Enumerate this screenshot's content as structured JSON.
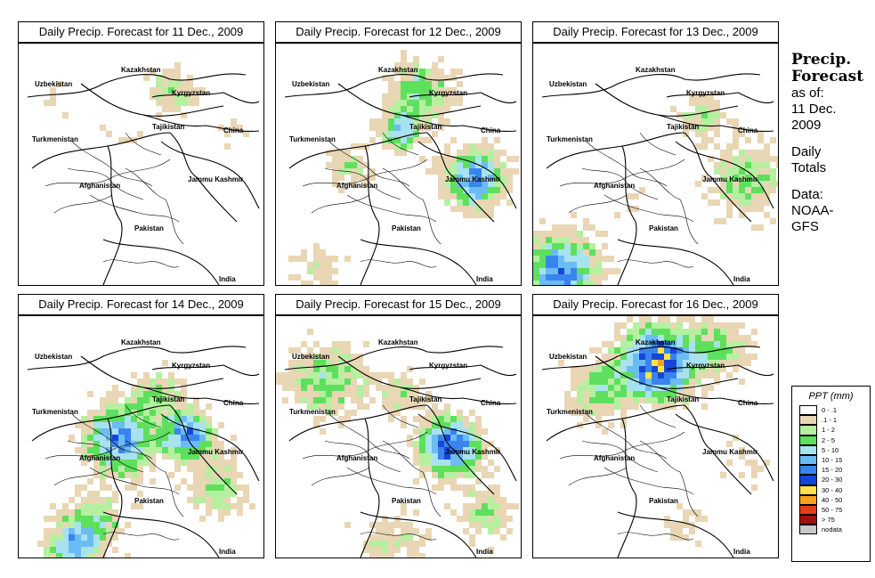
{
  "panels": [
    {
      "title": "Daily Precip. Forecast for  11 Dec., 2009",
      "seed": 11,
      "intensity": 0.35,
      "centers": [
        [
          0.62,
          0.18,
          0.1,
          1.8
        ],
        [
          0.15,
          0.22,
          0.08,
          0.8
        ],
        [
          0.88,
          0.35,
          0.08,
          0.9
        ],
        [
          0.4,
          0.35,
          0.08,
          0.8
        ]
      ]
    },
    {
      "title": "Daily Precip. Forecast for  12 Dec., 2009",
      "seed": 12,
      "intensity": 0.6,
      "centers": [
        [
          0.58,
          0.18,
          0.12,
          2.6
        ],
        [
          0.8,
          0.55,
          0.12,
          4.0
        ],
        [
          0.3,
          0.5,
          0.1,
          1.6
        ],
        [
          0.5,
          0.35,
          0.08,
          3.2
        ],
        [
          0.15,
          0.92,
          0.1,
          1.4
        ]
      ]
    },
    {
      "title": "Daily Precip. Forecast for  13 Dec., 2009",
      "seed": 13,
      "intensity": 0.5,
      "centers": [
        [
          0.1,
          0.93,
          0.15,
          4.2
        ],
        [
          0.85,
          0.55,
          0.15,
          2.2
        ],
        [
          0.68,
          0.28,
          0.1,
          1.6
        ],
        [
          0.4,
          0.65,
          0.08,
          0.9
        ]
      ]
    },
    {
      "title": "Daily Precip. Forecast for  14 Dec., 2009",
      "seed": 14,
      "intensity": 0.7,
      "centers": [
        [
          0.4,
          0.5,
          0.14,
          4.0
        ],
        [
          0.68,
          0.48,
          0.1,
          4.2
        ],
        [
          0.3,
          0.85,
          0.12,
          2.4
        ],
        [
          0.8,
          0.7,
          0.12,
          2.0
        ],
        [
          0.2,
          0.95,
          0.1,
          3.0
        ],
        [
          0.55,
          0.3,
          0.1,
          2.0
        ]
      ]
    },
    {
      "title": "Daily Precip. Forecast for  15 Dec., 2009",
      "seed": 15,
      "intensity": 0.6,
      "centers": [
        [
          0.7,
          0.53,
          0.12,
          4.8
        ],
        [
          0.2,
          0.25,
          0.15,
          2.4
        ],
        [
          0.85,
          0.8,
          0.1,
          2.0
        ],
        [
          0.5,
          0.3,
          0.1,
          1.6
        ],
        [
          0.45,
          0.95,
          0.15,
          1.4
        ]
      ]
    },
    {
      "title": "Daily Precip. Forecast for  16 Dec., 2009",
      "seed": 16,
      "intensity": 0.7,
      "centers": [
        [
          0.5,
          0.18,
          0.15,
          5.2
        ],
        [
          0.25,
          0.3,
          0.12,
          2.2
        ],
        [
          0.75,
          0.12,
          0.12,
          2.0
        ],
        [
          0.85,
          0.6,
          0.1,
          0.9
        ],
        [
          0.6,
          0.85,
          0.1,
          0.9
        ]
      ]
    }
  ],
  "map_labels": {
    "kazakhstan": "Kazakhstan",
    "uzbekistan": "Uzbekistan",
    "kyrgyzstan": "Kyrgyzstan",
    "tajikistan": "Tajikistan",
    "turkmenistan": "Turkmenistan",
    "china": "China",
    "afghanistan": "Afghanistan",
    "jammu_kashmir": "Jammu Kashmir",
    "pakistan": "Pakistan",
    "india": "India"
  },
  "sidebar": {
    "title_line1": "Precip.",
    "title_line2": "Forecast",
    "asof_line1": "as of:",
    "asof_line2": "11 Dec.",
    "asof_line3": "2009",
    "daily_line1": "Daily",
    "daily_line2": "Totals",
    "data_line1": "Data:",
    "data_line2": "NOAA-",
    "data_line3": "GFS"
  },
  "legend": {
    "title": "PPT (mm)",
    "bins": [
      {
        "label": "0 - .1",
        "color": "#ffffff"
      },
      {
        "label": ".1 - 1",
        "color": "#e9d6b4"
      },
      {
        "label": "1 - 2",
        "color": "#b5f0a0"
      },
      {
        "label": "2 - 5",
        "color": "#5ee05e"
      },
      {
        "label": "5 - 10",
        "color": "#a8e2ee"
      },
      {
        "label": "10 - 15",
        "color": "#6cbcf4"
      },
      {
        "label": "15 - 20",
        "color": "#3a84ee"
      },
      {
        "label": "20 - 30",
        "color": "#1546d8"
      },
      {
        "label": "30 - 40",
        "color": "#ffe34a"
      },
      {
        "label": "40 - 50",
        "color": "#f7a01e"
      },
      {
        "label": "50 - 75",
        "color": "#e63c1c"
      },
      {
        "label": "> 75",
        "color": "#a01010"
      },
      {
        "label": "nodata",
        "color": "#c8c8c8"
      }
    ]
  }
}
